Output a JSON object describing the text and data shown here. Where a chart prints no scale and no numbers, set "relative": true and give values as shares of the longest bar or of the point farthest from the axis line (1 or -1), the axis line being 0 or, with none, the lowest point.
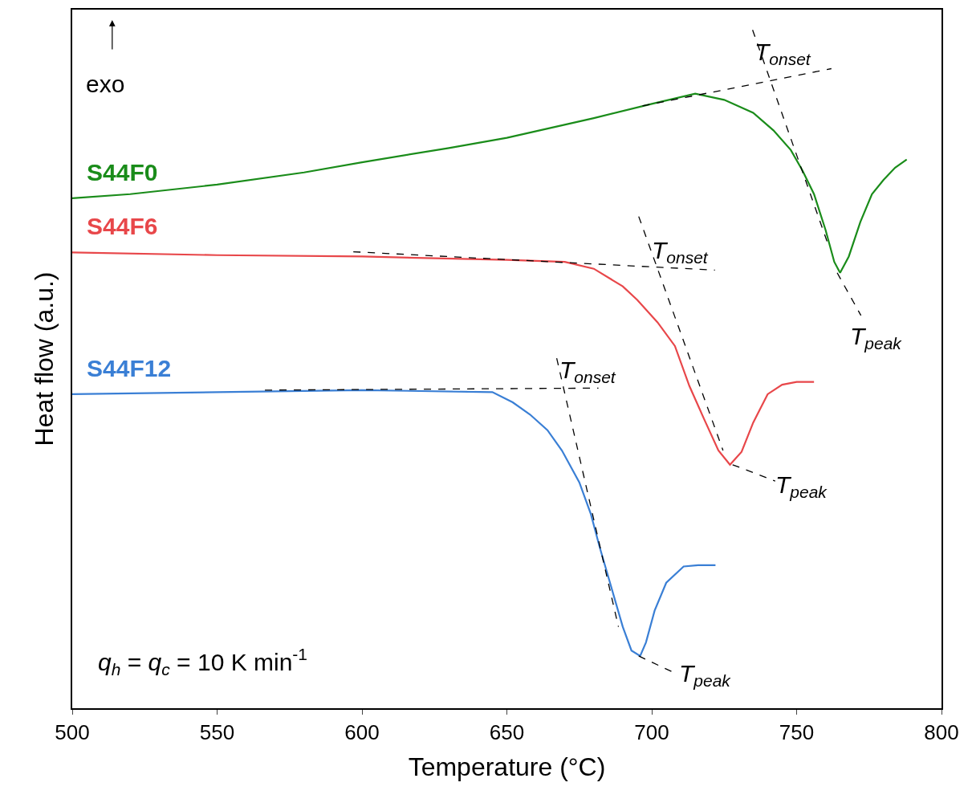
{
  "chart_data": {
    "type": "line",
    "xlabel": "Temperature (°C)",
    "ylabel": "Heat flow (a.u.)",
    "relative": true,
    "xlim": [
      500,
      800
    ],
    "xticks": [
      500,
      550,
      600,
      650,
      700,
      750,
      800
    ],
    "legend": false,
    "marker": "none",
    "line_style": "solid",
    "series": [
      {
        "name": "S44F0",
        "color": "#1a8c1a",
        "x": [
          500,
          520,
          550,
          580,
          600,
          630,
          650,
          680,
          700,
          715,
          725,
          735,
          742,
          748,
          752,
          756,
          760,
          763,
          765,
          768,
          772,
          776,
          780,
          784,
          788
        ],
        "values": [
          0.752,
          0.758,
          0.772,
          0.79,
          0.805,
          0.826,
          0.841,
          0.87,
          0.891,
          0.906,
          0.897,
          0.878,
          0.852,
          0.823,
          0.793,
          0.758,
          0.705,
          0.658,
          0.642,
          0.666,
          0.717,
          0.758,
          0.779,
          0.797,
          0.809
        ]
      },
      {
        "name": "S44F6",
        "color": "#e8474a",
        "x": [
          500,
          550,
          600,
          650,
          670,
          680,
          690,
          695,
          702,
          708,
          713,
          718,
          723,
          727,
          731,
          735,
          740,
          745,
          750,
          756
        ],
        "values": [
          0.672,
          0.668,
          0.666,
          0.661,
          0.658,
          0.648,
          0.622,
          0.602,
          0.569,
          0.534,
          0.475,
          0.427,
          0.38,
          0.359,
          0.378,
          0.421,
          0.463,
          0.477,
          0.481,
          0.481
        ]
      },
      {
        "name": "S44F12",
        "color": "#3a7fd5",
        "x": [
          500,
          550,
          600,
          645,
          652,
          658,
          664,
          669,
          675,
          679,
          682,
          686,
          690,
          693,
          696,
          698,
          701,
          705,
          711,
          716,
          722
        ],
        "values": [
          0.463,
          0.466,
          0.469,
          0.466,
          0.451,
          0.433,
          0.41,
          0.38,
          0.333,
          0.286,
          0.238,
          0.179,
          0.12,
          0.085,
          0.077,
          0.097,
          0.144,
          0.185,
          0.209,
          0.211,
          0.211
        ]
      },
      {
        "color": "#000000",
        "line_style": "dashed",
        "x": [
          696.8,
          762
        ],
        "values": [
          0.888,
          0.943
        ]
      },
      {
        "color": "#000000",
        "line_style": "dashed",
        "x": [
          734.8,
          760.6
        ],
        "values": [
          1.0,
          0.687
        ]
      },
      {
        "color": "#000000",
        "line_style": "dashed",
        "x": [
          764,
          772.2
        ],
        "values": [
          0.642,
          0.579
        ]
      },
      {
        "color": "#000000",
        "line_style": "dashed",
        "x": [
          597,
          721.8
        ],
        "values": [
          0.673,
          0.646
        ]
      },
      {
        "color": "#000000",
        "line_style": "dashed",
        "x": [
          695.5,
          724.6
        ],
        "values": [
          0.725,
          0.38
        ]
      },
      {
        "color": "#000000",
        "line_style": "dashed",
        "x": [
          727.9,
          742.6
        ],
        "values": [
          0.359,
          0.335
        ]
      },
      {
        "color": "#000000",
        "line_style": "dashed",
        "x": [
          566.5,
          681.6
        ],
        "values": [
          0.469,
          0.472
        ]
      },
      {
        "color": "#000000",
        "line_style": "dashed",
        "x": [
          667.2,
          688.5
        ],
        "values": [
          0.516,
          0.12
        ]
      },
      {
        "color": "#000000",
        "line_style": "dashed",
        "x": [
          695.5,
          707.9
        ],
        "values": [
          0.077,
          0.052
        ]
      }
    ],
    "annotations": [
      "exo",
      "q$_{h}$ = q$_{c}$ = 10 K min$^{-1}$",
      "T$_{onset}$",
      "T$_{peak}$",
      "T$_{onset}$",
      "T$_{peak}$",
      "T$_{onset}$",
      "T$_{peak}$"
    ]
  }
}
